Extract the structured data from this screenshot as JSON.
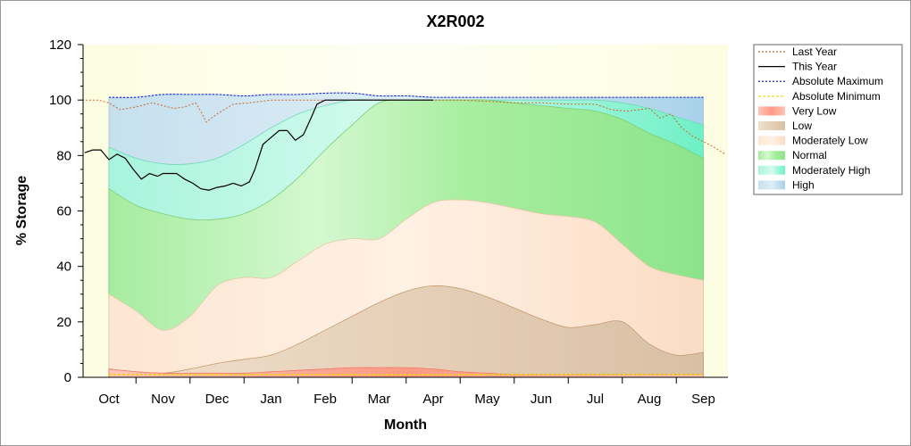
{
  "chart_data": {
    "type": "area",
    "title": "X2R002",
    "xlabel": "Month",
    "ylabel": "% Storage",
    "ylim": [
      0,
      120
    ],
    "yticks": [
      "0",
      "20",
      "40",
      "60",
      "80",
      "100",
      "120"
    ],
    "categories": [
      "Oct",
      "Nov",
      "Dec",
      "Jan",
      "Feb",
      "Mar",
      "Apr",
      "May",
      "Jun",
      "Jul",
      "Aug",
      "Sep"
    ],
    "grid": false,
    "legend_position": "top-right",
    "bands": {
      "x": [
        0,
        0.5,
        1,
        1.5,
        2,
        2.5,
        3,
        3.5,
        4,
        4.5,
        5,
        5.5,
        6,
        6.5,
        7,
        7.5,
        8,
        8.5,
        9,
        9.5,
        10,
        10.5,
        11
      ],
      "very_low": [
        3,
        2,
        1.5,
        1.5,
        1.5,
        1.5,
        2,
        2.5,
        3,
        3.5,
        3.5,
        3.5,
        3,
        2,
        1.5,
        1,
        1,
        1,
        1,
        1,
        1,
        1,
        1
      ],
      "low": [
        3,
        2,
        1.5,
        3,
        5,
        6.5,
        8,
        12,
        17,
        22,
        27,
        31,
        33,
        32,
        29,
        25,
        21,
        18,
        19,
        20,
        12,
        8,
        9
      ],
      "moderately_low": [
        30,
        24,
        17,
        22,
        33,
        36,
        36,
        42,
        48,
        50,
        50,
        57,
        63,
        64,
        63,
        61,
        59,
        58,
        56,
        48,
        40,
        37,
        35
      ],
      "normal": [
        68,
        62,
        59,
        57,
        57,
        59,
        64,
        72,
        82,
        91,
        99,
        100,
        100,
        100,
        100,
        99,
        98,
        97,
        96,
        93,
        88,
        84,
        79
      ],
      "moderately_high": [
        83,
        79,
        77,
        77,
        79,
        84,
        90,
        95,
        98,
        100,
        100,
        100,
        100,
        100,
        100,
        100,
        100,
        100,
        100,
        99,
        97,
        94,
        91
      ],
      "high": [
        101,
        101,
        102,
        102,
        102,
        101.5,
        102,
        102,
        102.5,
        102.5,
        101.5,
        101.5,
        101,
        101,
        101,
        101,
        101,
        101,
        101,
        101,
        101,
        101,
        101
      ]
    },
    "series": [
      {
        "name": "Last Year",
        "x": [
          -0.5,
          -0.2,
          0,
          0.2,
          0.5,
          0.8,
          1.0,
          1.2,
          1.4,
          1.6,
          1.7,
          1.8,
          2.0,
          2.3,
          2.6,
          3.0,
          3.5,
          4.0,
          4.5,
          5.0,
          5.5,
          6.0,
          6.5,
          7.0,
          7.5,
          8.0,
          8.5,
          9.0,
          9.3,
          9.6,
          9.8,
          10.0,
          10.2,
          10.4,
          10.6,
          10.8,
          11.0,
          11.2,
          11.4
        ],
        "values": [
          100,
          100,
          99,
          96.5,
          97.5,
          99,
          98,
          97,
          97.5,
          99,
          96,
          92,
          95,
          98.5,
          99,
          100,
          100,
          100,
          100,
          100,
          100,
          100,
          100,
          99.5,
          99,
          99,
          98.5,
          98.5,
          96.5,
          96,
          96.5,
          97,
          93.5,
          95,
          90,
          87,
          85,
          83,
          80.5
        ]
      },
      {
        "name": "This Year",
        "x": [
          -0.45,
          -0.3,
          -0.15,
          0,
          0.15,
          0.3,
          0.45,
          0.6,
          0.75,
          0.9,
          1.0,
          1.1,
          1.25,
          1.4,
          1.55,
          1.7,
          1.85,
          2.0,
          2.15,
          2.3,
          2.45,
          2.6,
          2.7,
          2.85,
          3.0,
          3.15,
          3.3,
          3.45,
          3.6,
          3.75,
          3.85,
          4.0,
          4.1,
          4.2,
          4.3,
          4.5,
          4.8,
          5.0,
          5.5,
          6.0
        ],
        "values": [
          81,
          82,
          82,
          78.5,
          80.5,
          79,
          75,
          71.5,
          73.5,
          72.5,
          73.5,
          73.5,
          73.5,
          71.5,
          70,
          68,
          67.5,
          68.5,
          69,
          70,
          69,
          70.5,
          75,
          84,
          86.5,
          89,
          89,
          85.5,
          87.5,
          94,
          98.5,
          100,
          100,
          100,
          100,
          100,
          100,
          100,
          100,
          100
        ]
      },
      {
        "name": "Absolute Maximum",
        "x": [
          0,
          0.5,
          1,
          1.5,
          2,
          2.5,
          3,
          3.5,
          4,
          4.5,
          5,
          5.5,
          6,
          6.5,
          7,
          7.5,
          8,
          8.5,
          9,
          9.5,
          10,
          10.5,
          11
        ],
        "values": [
          101,
          101,
          102,
          102,
          102,
          101.5,
          102,
          102,
          102.5,
          102.5,
          101.5,
          101.5,
          101,
          101,
          101,
          101,
          101,
          101,
          101,
          101,
          101,
          101,
          101
        ]
      },
      {
        "name": "Absolute Minimum",
        "x": [
          0,
          11
        ],
        "values": [
          1,
          1
        ]
      }
    ],
    "legend": [
      "Last Year",
      "This Year",
      "Absolute Maximum",
      "Absolute Minimum",
      "Very Low",
      "Low",
      "Moderately Low",
      "Normal",
      "Moderately High",
      "High"
    ],
    "colors": {
      "last_year": "#c96a2c",
      "this_year": "#000000",
      "absolute_maximum": "#0000cc",
      "absolute_minimum": "#e6d800",
      "very_low": "#ff9a85",
      "low": "#dcc2a6",
      "moderately_low": "#fde3cc",
      "normal": "#8fe88f",
      "moderately_high": "#7ff2d0",
      "high": "#c0dcee",
      "plot_background": "#fdfde8"
    }
  }
}
